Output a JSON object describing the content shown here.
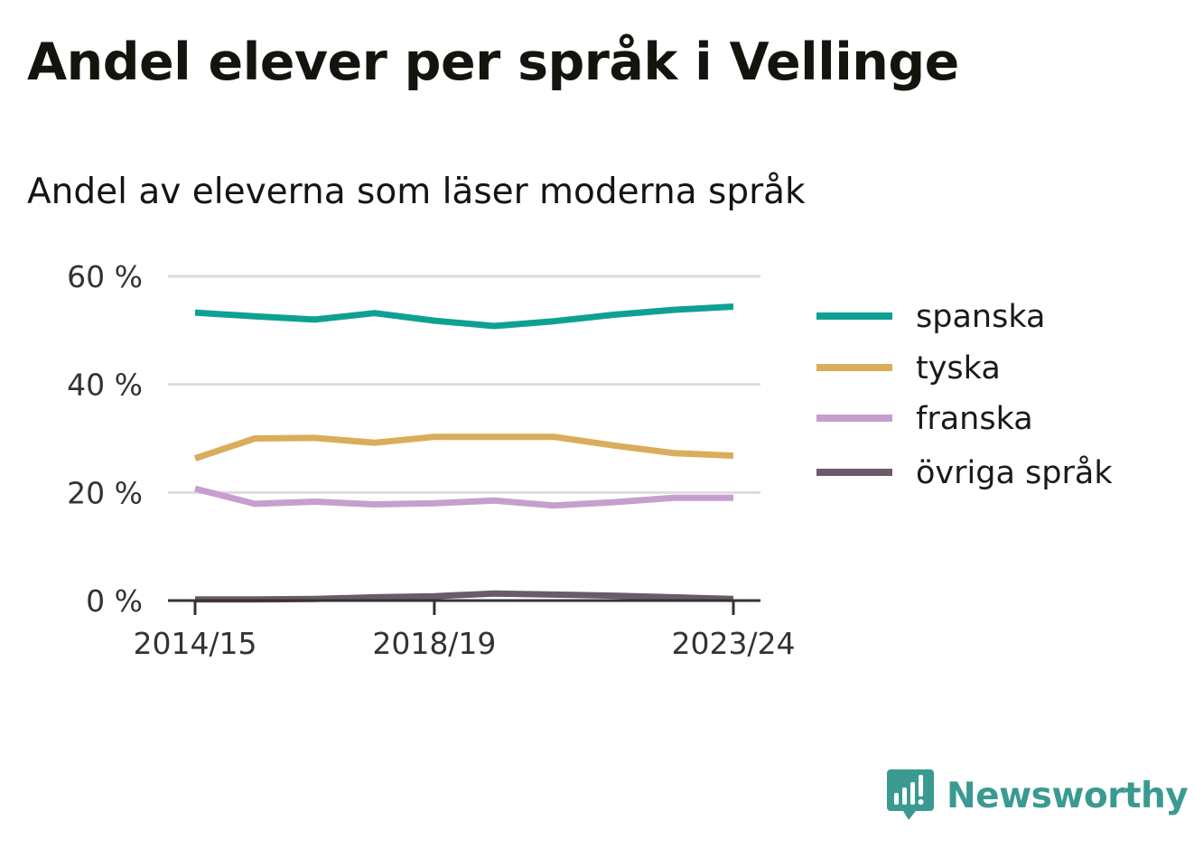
{
  "title": "Andel elever per språk i Vellinge",
  "subtitle": "Andel av eleverna som läser moderna språk",
  "brand": "Newsworthy",
  "chart_data": {
    "type": "line",
    "x": [
      "2014/15",
      "2015/16",
      "2016/17",
      "2017/18",
      "2018/19",
      "2019/20",
      "2020/21",
      "2021/22",
      "2022/23",
      "2023/24"
    ],
    "x_tick_labels": [
      "2014/15",
      "2018/19",
      "2023/24"
    ],
    "y_tick_labels": [
      "0 %",
      "20 %",
      "40 %",
      "60 %"
    ],
    "y_ticks": [
      0,
      20,
      40,
      60
    ],
    "ylim": [
      0,
      60
    ],
    "grid": true,
    "legend_position": "right",
    "series": [
      {
        "name": "spanska",
        "color": "#0ea193",
        "values": [
          53.3,
          52.6,
          52.0,
          53.2,
          51.8,
          50.8,
          51.7,
          52.9,
          53.8,
          54.4
        ]
      },
      {
        "name": "tyska",
        "color": "#d9ad5b",
        "values": [
          26.3,
          30.0,
          30.1,
          29.2,
          30.3,
          30.3,
          30.3,
          28.7,
          27.3,
          26.8
        ]
      },
      {
        "name": "franska",
        "color": "#c69fcf",
        "values": [
          20.7,
          17.9,
          18.3,
          17.8,
          18.0,
          18.5,
          17.6,
          18.2,
          19.0,
          19.0
        ]
      },
      {
        "name": "övriga språk",
        "color": "#6b5b68",
        "values": [
          0.2,
          0.2,
          0.3,
          0.6,
          0.8,
          1.3,
          1.1,
          0.9,
          0.6,
          0.3
        ]
      }
    ]
  }
}
